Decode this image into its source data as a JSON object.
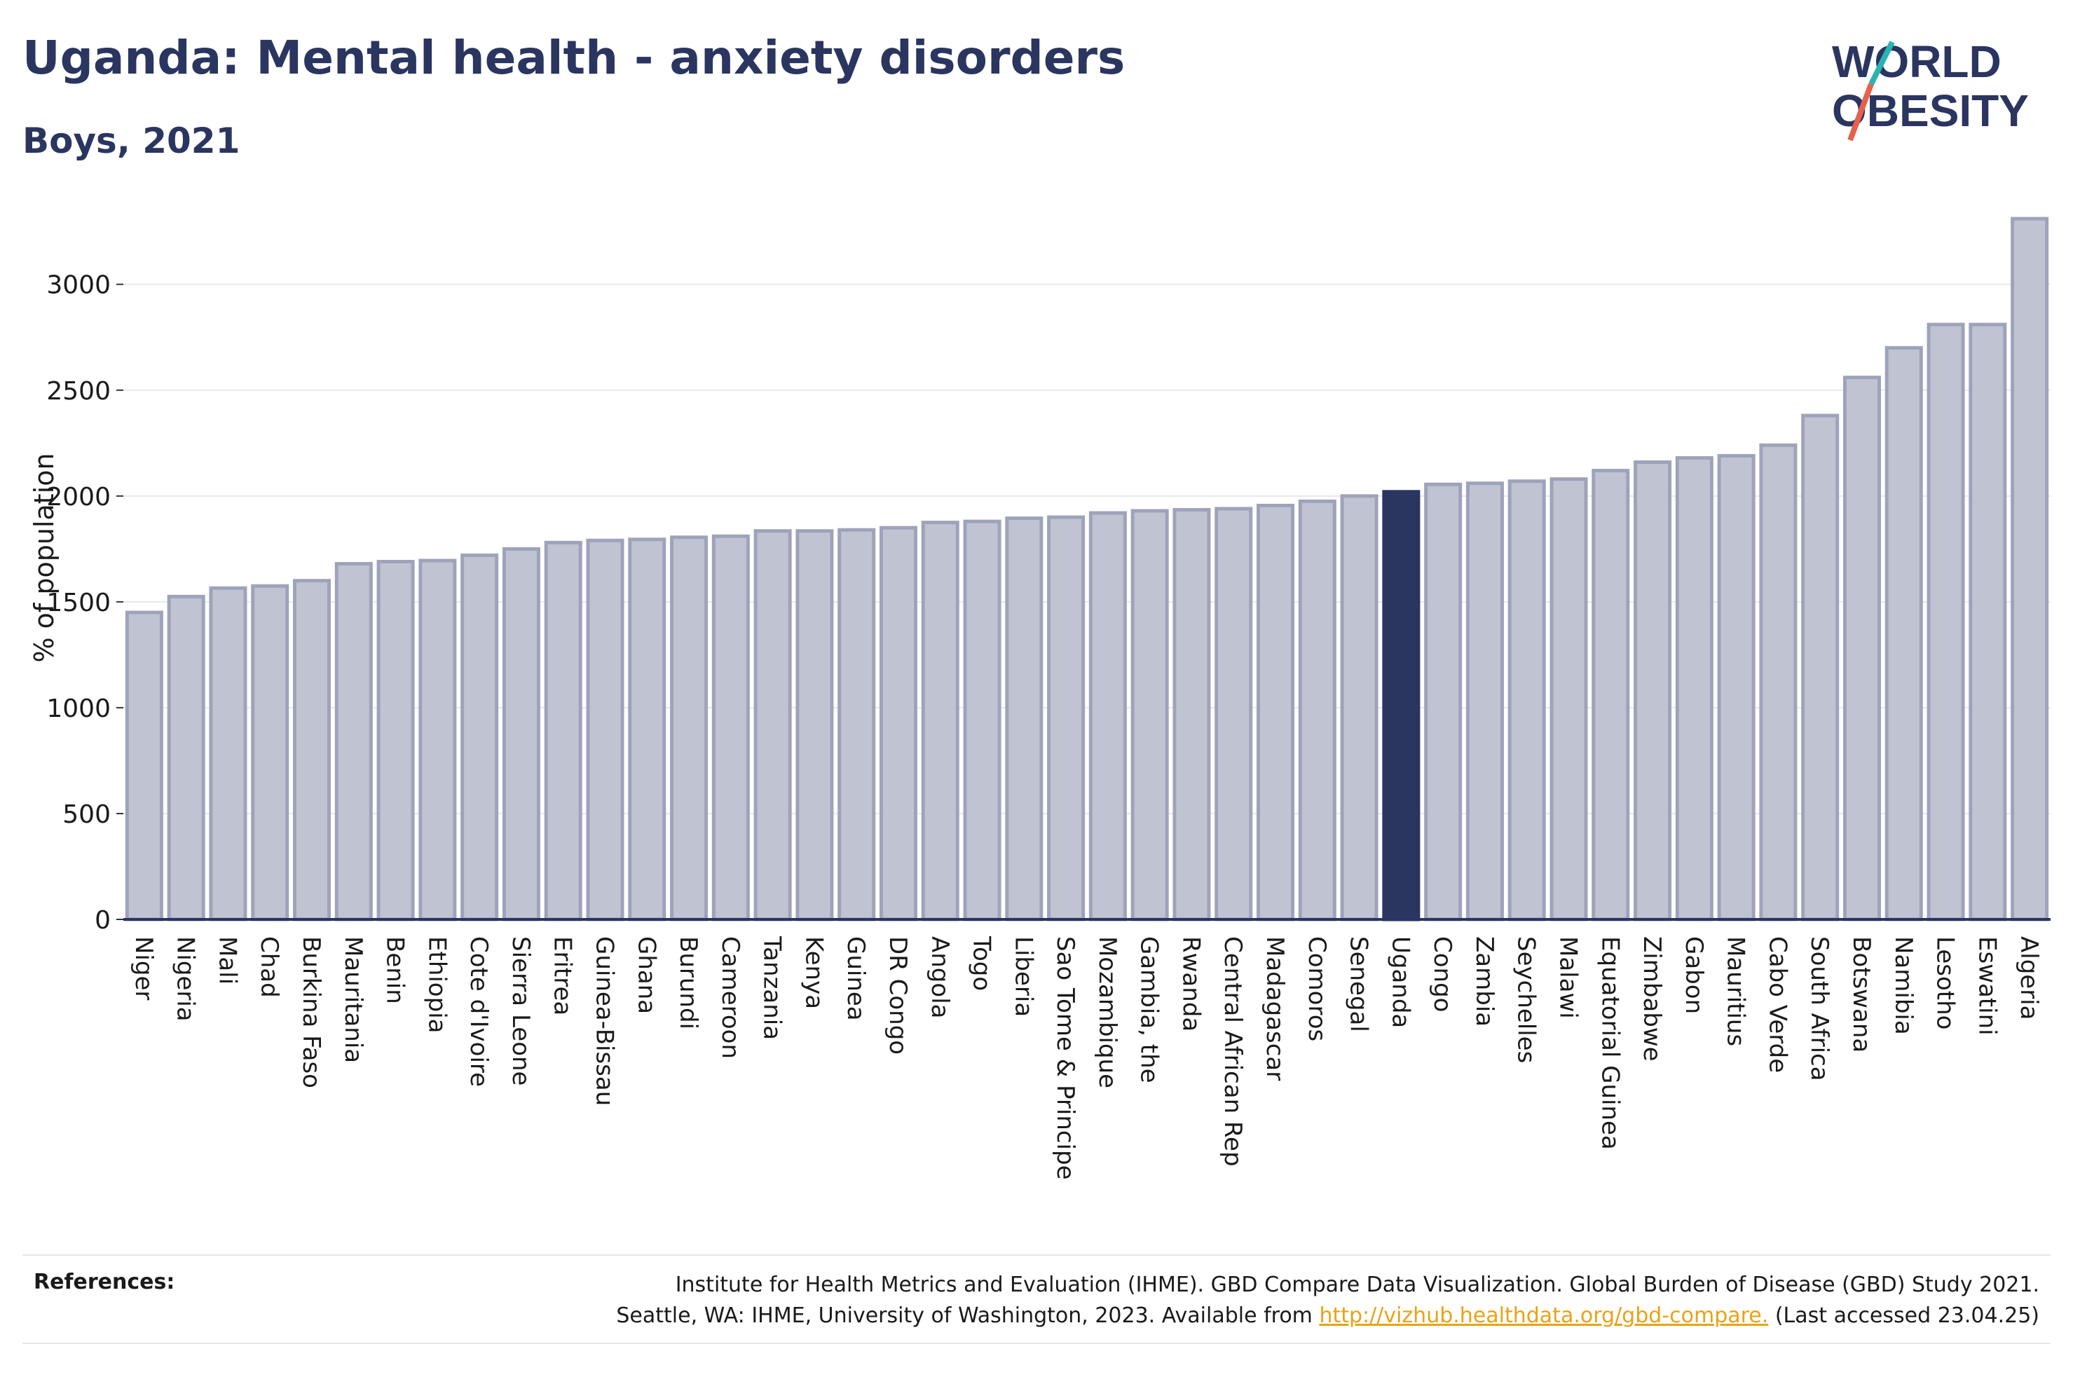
{
  "header": {
    "title": "Uganda: Mental health - anxiety disorders",
    "subtitle": "Boys, 2021"
  },
  "logo": {
    "line1": "WORLD",
    "line2": "OBESITY",
    "colors": {
      "text": "#2a3560",
      "slash_top": "#2ab3b1",
      "slash_bottom": "#e8604c"
    }
  },
  "colors": {
    "bar_fill": "#c0c4d2",
    "bar_stroke": "#9ea3bb",
    "highlight_fill": "#2a3560",
    "axis": "#2a3560",
    "grid": "#e8e8e8"
  },
  "chart_data": {
    "type": "bar",
    "title": "Uganda: Mental health - anxiety disorders",
    "subtitle": "Boys, 2021",
    "xlabel": "",
    "ylabel": "% of population",
    "ylim": [
      0,
      3350
    ],
    "yticks": [
      0,
      500,
      1000,
      1500,
      2000,
      2500,
      3000
    ],
    "grid": true,
    "highlight": "Uganda",
    "categories": [
      "Niger",
      "Nigeria",
      "Mali",
      "Chad",
      "Burkina Faso",
      "Mauritania",
      "Benin",
      "Ethiopia",
      "Cote d'Ivoire",
      "Sierra Leone",
      "Eritrea",
      "Guinea-Bissau",
      "Ghana",
      "Burundi",
      "Cameroon",
      "Tanzania",
      "Kenya",
      "Guinea",
      "DR Congo",
      "Angola",
      "Togo",
      "Liberia",
      "Sao Tome & Principe",
      "Mozambique",
      "Gambia, the",
      "Rwanda",
      "Central African Rep",
      "Madagascar",
      "Comoros",
      "Senegal",
      "Uganda",
      "Congo",
      "Zambia",
      "Seychelles",
      "Malawi",
      "Equatorial Guinea",
      "Zimbabwe",
      "Gabon",
      "Mauritius",
      "Cabo Verde",
      "South Africa",
      "Botswana",
      "Namibia",
      "Lesotho",
      "Eswatini",
      "Algeria"
    ],
    "values": [
      1450,
      1525,
      1565,
      1575,
      1600,
      1680,
      1690,
      1695,
      1720,
      1750,
      1780,
      1790,
      1795,
      1805,
      1810,
      1835,
      1835,
      1840,
      1850,
      1875,
      1880,
      1895,
      1900,
      1920,
      1930,
      1935,
      1940,
      1955,
      1975,
      2000,
      2020,
      2055,
      2060,
      2070,
      2080,
      2120,
      2160,
      2180,
      2190,
      2240,
      2380,
      2560,
      2700,
      2810,
      2810,
      3310
    ]
  },
  "references": {
    "label": "References:",
    "line1": "Institute for Health Metrics and Evaluation (IHME). GBD Compare Data Visualization. Global Burden of Disease (GBD) Study 2021.",
    "line2_prefix": "Seattle, WA: IHME, University of Washington, 2023. Available from ",
    "link": "http://vizhub.healthdata.org/gbd-compare.",
    "line2_suffix": " (Last accessed 23.04.25)"
  }
}
